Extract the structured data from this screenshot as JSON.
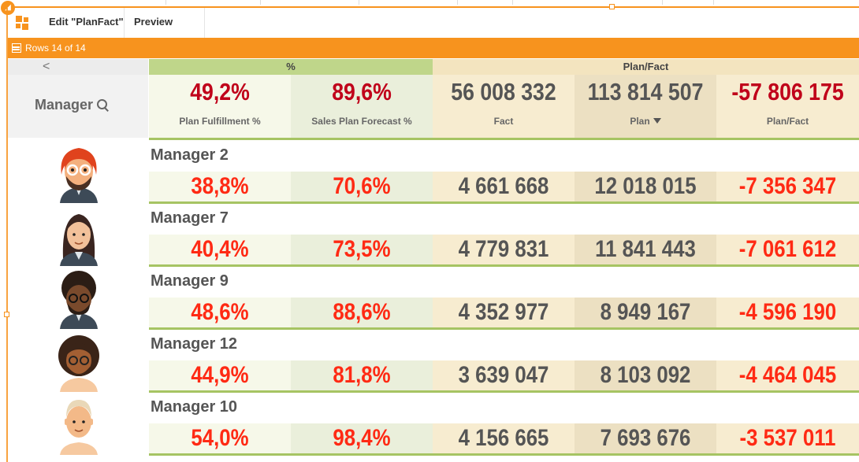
{
  "tabs": {
    "edit": "Edit \"PlanFact\"",
    "preview": "Preview"
  },
  "rowsbar": {
    "label": "Rows 14 of 14"
  },
  "header": {
    "dimension": "Manager",
    "groups": {
      "percent": "%",
      "planfact": "Plan/Fact"
    },
    "kpis": [
      {
        "value": "49,2%",
        "label": "Plan Fulfillment %"
      },
      {
        "value": "89,6%",
        "label": "Sales Plan Forecast %"
      },
      {
        "value": "56 008 332",
        "label": "Fact"
      },
      {
        "value": "113 814 507",
        "label": "Plan"
      },
      {
        "value": "-57 806 175",
        "label": "Plan/Fact"
      }
    ]
  },
  "rows": [
    {
      "name": "Manager 2",
      "values": [
        "38,8%",
        "70,6%",
        "4 661 668",
        "12 018 015",
        "-7 356 347"
      ]
    },
    {
      "name": "Manager 7",
      "values": [
        "40,4%",
        "73,5%",
        "4 779 831",
        "11 841 443",
        "-7 061 612"
      ]
    },
    {
      "name": "Manager 9",
      "values": [
        "48,6%",
        "88,6%",
        "4 352 977",
        "8 949 167",
        "-4 596 190"
      ]
    },
    {
      "name": "Manager 12",
      "values": [
        "44,9%",
        "81,8%",
        "3 639 047",
        "8 103 092",
        "-4 464 045"
      ]
    },
    {
      "name": "Manager 10",
      "values": [
        "54,0%",
        "98,4%",
        "4 156 665",
        "7 693 676",
        "-3 537 011"
      ]
    }
  ],
  "colors": {
    "accent": "#f7931e",
    "negative": "#c0001a",
    "row_value": "#ff2a14",
    "text": "#555555"
  },
  "icons": {
    "app": "grid-icon",
    "table": "table-icon",
    "search": "search-icon",
    "sort": "sort-desc-icon",
    "back": "chevron-left-icon"
  }
}
